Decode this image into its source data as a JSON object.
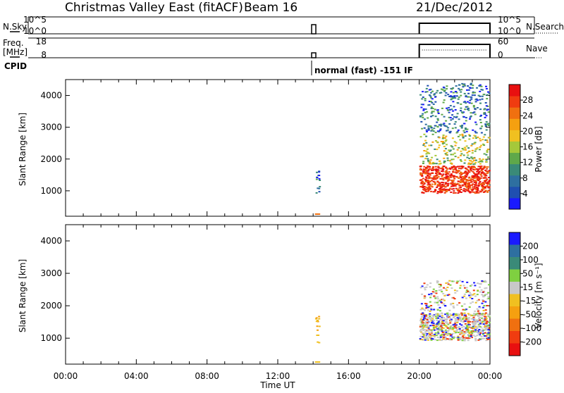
{
  "header": {
    "station": "Christmas Valley East (fitACF)",
    "beam": "Beam 16",
    "date": "21/Dec/2012"
  },
  "params": {
    "nsky_label": "N.Sky",
    "nsky_ticks": [
      "10^5",
      "10^0"
    ],
    "nsearch_label": "N.Search",
    "nsearch_ticks": [
      "10^5",
      "10^0"
    ],
    "freq_label": "Freq.",
    "freq_unit": "[MHz]",
    "freq_ticks": [
      "18",
      "8"
    ],
    "nave_label": "Nave",
    "nave_ticks": [
      "60",
      "0"
    ],
    "cpid_label": "CPID",
    "cpid_text": "normal (fast) -151 IF"
  },
  "chart_data": [
    {
      "type": "heatmap",
      "name": "power-panel",
      "xlabel": "",
      "ylabel": "Slant Range [km]",
      "ylim": [
        200,
        4500
      ],
      "yticks": [
        "1000",
        "2000",
        "3000",
        "4000"
      ],
      "colorbar": {
        "label": "Power [dB]",
        "ticks": [
          "4",
          "8",
          "12",
          "16",
          "20",
          "24",
          "28"
        ],
        "range": [
          0,
          32
        ],
        "colors": [
          "#1a1aff",
          "#1f4fb0",
          "#2e6fa0",
          "#3a8a78",
          "#5fa84a",
          "#a5c83a",
          "#f0c020",
          "#f5a010",
          "#f07010",
          "#f03c10",
          "#e81010"
        ]
      },
      "data_windows_ut_hours": [
        [
          14.1,
          14.4
        ],
        [
          20.0,
          24.0
        ]
      ],
      "features": [
        {
          "ut": [
            14.1,
            14.4
          ],
          "range_km": [
            800,
            1800
          ],
          "power_db": 6
        },
        {
          "ut": [
            20.0,
            24.0
          ],
          "range_km": [
            900,
            1800
          ],
          "power_db": 28
        },
        {
          "ut": [
            20.0,
            24.0
          ],
          "range_km": [
            1800,
            2800
          ],
          "power_db": 14
        },
        {
          "ut": [
            20.0,
            24.0
          ],
          "range_km": [
            2800,
            4400
          ],
          "power_db": 6
        }
      ]
    },
    {
      "type": "heatmap",
      "name": "velocity-panel",
      "xlabel": "Time UT",
      "ylabel": "Slant Range [km]",
      "ylim": [
        200,
        4500
      ],
      "yticks": [
        "1000",
        "2000",
        "3000",
        "4000"
      ],
      "xticks": [
        "00:00",
        "04:00",
        "08:00",
        "12:00",
        "16:00",
        "20:00",
        "00:00"
      ],
      "colorbar": {
        "label": "Velocity [m s⁻¹]",
        "ticks": [
          "200",
          "100",
          "50",
          "15",
          "-15",
          "-50",
          "-100",
          "-200"
        ],
        "colors": [
          "#1a1aff",
          "#2e6fa0",
          "#3a8a78",
          "#7fd040",
          "#c8c8c8",
          "#f0c020",
          "#f5a010",
          "#f07010",
          "#f03c10",
          "#e81010"
        ]
      },
      "features": [
        {
          "ut": [
            14.1,
            14.4
          ],
          "range_km": [
            800,
            1700
          ],
          "velocity": -40
        },
        {
          "ut": [
            20.0,
            24.0
          ],
          "range_km": [
            900,
            1800
          ],
          "velocity": 0
        },
        {
          "ut": [
            20.0,
            24.0
          ],
          "range_km": [
            1800,
            2800
          ],
          "velocity": 0
        }
      ]
    }
  ]
}
